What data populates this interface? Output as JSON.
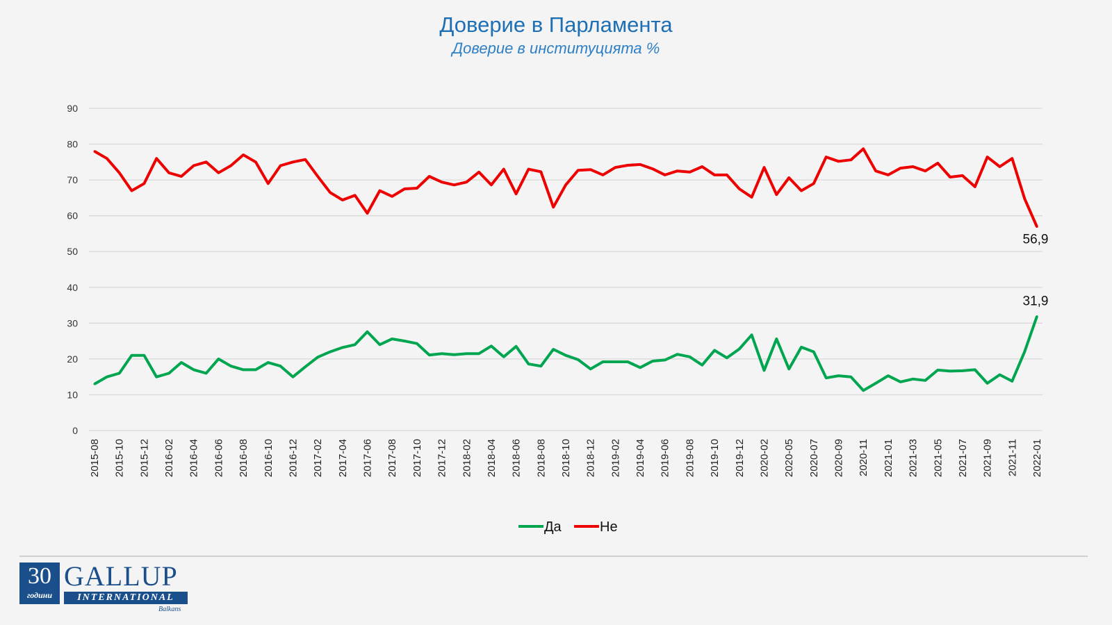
{
  "chart_data": {
    "type": "line",
    "title": "Доверие в Парламента",
    "subtitle": "Доверие в институцията %",
    "ylim": [
      0,
      90
    ],
    "yticks": [
      0,
      10,
      20,
      30,
      40,
      50,
      60,
      70,
      80,
      90
    ],
    "grid": true,
    "legend_position": "bottom",
    "categories": [
      "2015-08",
      "",
      "2015-10",
      "",
      "2015-12",
      "",
      "2016-02",
      "",
      "2016-04",
      "",
      "2016-06",
      "",
      "2016-08",
      "",
      "2016-10",
      "",
      "2016-12",
      "",
      "2017-02",
      "",
      "2017-04",
      "",
      "2017-06",
      "",
      "2017-08",
      "",
      "2017-10",
      "",
      "2017-12",
      "",
      "2018-02",
      "",
      "2018-04",
      "",
      "2018-06",
      "",
      "2018-08",
      "",
      "2018-10",
      "",
      "2018-12",
      "",
      "2019-02",
      "",
      "2019-04",
      "",
      "2019-06",
      "",
      "2019-08",
      "",
      "2019-10",
      "",
      "2019-12",
      "",
      "2020-02",
      "",
      "2020-05",
      "",
      "2020-07",
      "",
      "2020-09",
      "",
      "2020-11",
      "",
      "2021-01",
      "",
      "2021-03",
      "",
      "2021-05",
      "",
      "2021-07",
      "",
      "2021-09",
      "",
      "2021-11",
      "",
      "2022-01"
    ],
    "series": [
      {
        "name": "Да",
        "color": "#00a550",
        "values": [
          13,
          15,
          16,
          21,
          21,
          15,
          16,
          19,
          17,
          16,
          20,
          18,
          17,
          17,
          19,
          18,
          15,
          17.8,
          20.5,
          22,
          23.2,
          24,
          27.6,
          24,
          25.6,
          25,
          24.3,
          21.1,
          21.5,
          21.2,
          21.5,
          21.5,
          23.6,
          20.6,
          23.5,
          18.6,
          18,
          22.7,
          21,
          19.8,
          17.2,
          19.2,
          19.2,
          19.2,
          17.6,
          19.4,
          19.7,
          21.3,
          20.6,
          18.3,
          22.4,
          20.3,
          22.8,
          26.7,
          16.8,
          25.6,
          17.2,
          23.3,
          22,
          14.7,
          15.3,
          15,
          11.2,
          13.2,
          15.3,
          13.6,
          14.4,
          14,
          16.9,
          16.6,
          16.7,
          17,
          13.2,
          15.6,
          13.8,
          22,
          31.9
        ],
        "last_label": "31,9"
      },
      {
        "name": "Не",
        "color": "#ee0000",
        "values": [
          78,
          76,
          72,
          67,
          69,
          76,
          72,
          71,
          74,
          75,
          72,
          74,
          77,
          75,
          69,
          74,
          75,
          75.7,
          71,
          66.5,
          64.4,
          65.7,
          60.7,
          67,
          65.4,
          67.5,
          67.7,
          71,
          69.4,
          68.6,
          69.4,
          72.2,
          68.6,
          73,
          66.1,
          73,
          72.3,
          62.4,
          68.6,
          72.7,
          72.9,
          71.4,
          73.5,
          74.1,
          74.3,
          73.1,
          71.4,
          72.5,
          72.2,
          73.7,
          71.4,
          71.4,
          67.5,
          65.2,
          73.5,
          65.9,
          70.6,
          67,
          69,
          76.4,
          75.2,
          75.6,
          78.7,
          72.5,
          71.4,
          73.3,
          73.7,
          72.5,
          74.7,
          70.8,
          71.2,
          68.1,
          76.4,
          73.7,
          76,
          64.8,
          56.9
        ],
        "last_label": "56,9"
      }
    ]
  },
  "logo": {
    "number": "30",
    "years": "години",
    "brand": "GALLUP",
    "sub": "INTERNATIONAL",
    "region": "Balkans"
  }
}
